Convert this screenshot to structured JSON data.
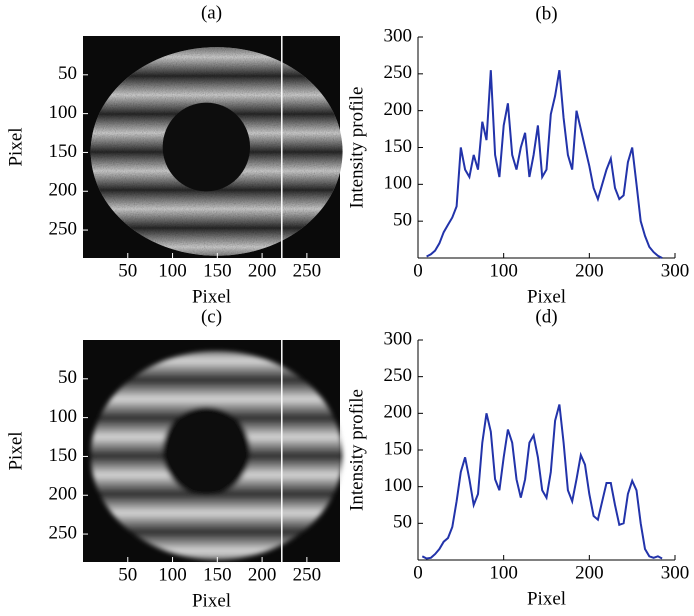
{
  "chart_data": [
    {
      "type": "image",
      "title": "(a)",
      "x_label": "Pixel",
      "y_label": "Pixel",
      "xlim": [
        0,
        287
      ],
      "ylim": [
        0,
        286
      ],
      "y_inverted": true,
      "xticks": [
        50,
        100,
        150,
        200,
        250
      ],
      "yticks": [
        50,
        100,
        150,
        200,
        250
      ],
      "marker_x": 222,
      "blur": false
    },
    {
      "type": "line",
      "title": "(b)",
      "x_label": "Pixel",
      "y_label": "Intensity profile",
      "xlim": [
        0,
        300
      ],
      "ylim": [
        0,
        300
      ],
      "xticks": [
        0,
        100,
        200,
        300
      ],
      "yticks": [
        50,
        100,
        150,
        200,
        250,
        300
      ],
      "color": "#2233aa",
      "x": [
        10,
        15,
        20,
        25,
        30,
        35,
        40,
        45,
        50,
        55,
        60,
        65,
        70,
        75,
        80,
        85,
        90,
        95,
        100,
        105,
        110,
        115,
        120,
        125,
        130,
        135,
        140,
        145,
        150,
        155,
        160,
        165,
        170,
        175,
        180,
        185,
        190,
        195,
        200,
        205,
        210,
        215,
        220,
        225,
        230,
        235,
        240,
        245,
        250,
        255,
        260,
        265,
        270,
        275,
        280,
        285
      ],
      "values": [
        2,
        5,
        10,
        20,
        35,
        45,
        55,
        70,
        150,
        120,
        110,
        140,
        120,
        185,
        160,
        255,
        140,
        110,
        180,
        210,
        140,
        120,
        150,
        170,
        110,
        140,
        180,
        110,
        120,
        195,
        220,
        255,
        190,
        140,
        120,
        200,
        175,
        150,
        125,
        95,
        80,
        100,
        120,
        135,
        95,
        80,
        85,
        130,
        150,
        100,
        50,
        30,
        15,
        8,
        3,
        0
      ]
    },
    {
      "type": "image",
      "title": "(c)",
      "x_label": "Pixel",
      "y_label": "Pixel",
      "xlim": [
        0,
        287
      ],
      "ylim": [
        0,
        286
      ],
      "y_inverted": true,
      "xticks": [
        50,
        100,
        150,
        200,
        250
      ],
      "yticks": [
        50,
        100,
        150,
        200,
        250
      ],
      "marker_x": 222,
      "blur": true
    },
    {
      "type": "line",
      "title": "(d)",
      "x_label": "Pixel",
      "y_label": "Intensity profile",
      "xlim": [
        0,
        300
      ],
      "ylim": [
        0,
        300
      ],
      "xticks": [
        0,
        100,
        200,
        300
      ],
      "yticks": [
        50,
        100,
        150,
        200,
        250,
        300
      ],
      "color": "#2233aa",
      "x": [
        5,
        10,
        15,
        20,
        25,
        30,
        35,
        40,
        45,
        50,
        55,
        60,
        65,
        70,
        75,
        80,
        85,
        90,
        95,
        100,
        105,
        110,
        115,
        120,
        125,
        130,
        135,
        140,
        145,
        150,
        155,
        160,
        165,
        170,
        175,
        180,
        185,
        190,
        195,
        200,
        205,
        210,
        215,
        220,
        225,
        230,
        235,
        240,
        245,
        250,
        255,
        260,
        265,
        270,
        275,
        280,
        285
      ],
      "values": [
        5,
        2,
        3,
        8,
        15,
        25,
        30,
        45,
        80,
        120,
        140,
        110,
        75,
        90,
        160,
        200,
        175,
        110,
        95,
        140,
        178,
        160,
        110,
        85,
        110,
        160,
        170,
        140,
        95,
        85,
        120,
        190,
        212,
        160,
        95,
        80,
        110,
        143,
        130,
        90,
        60,
        55,
        80,
        105,
        105,
        75,
        48,
        50,
        90,
        108,
        95,
        50,
        15,
        5,
        3,
        5,
        2
      ]
    }
  ]
}
